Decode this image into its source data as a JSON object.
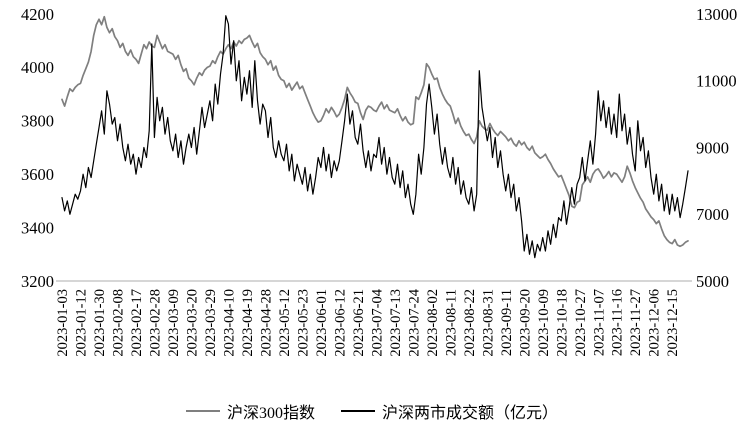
{
  "chart_data": {
    "type": "line",
    "title": "",
    "x_label_every": 7,
    "x_labels": [
      "2023-01-03",
      "2023-01-12",
      "2023-01-30",
      "2023-02-08",
      "2023-02-17",
      "2023-02-28",
      "2023-03-09",
      "2023-03-20",
      "2023-03-29",
      "2023-04-10",
      "2023-04-19",
      "2023-04-28",
      "2023-05-12",
      "2023-05-23",
      "2023-06-01",
      "2023-06-12",
      "2023-06-21",
      "2023-07-04",
      "2023-07-13",
      "2023-07-24",
      "2023-08-02",
      "2023-08-11",
      "2023-08-22",
      "2023-08-31",
      "2023-09-11",
      "2023-09-20",
      "2023-10-09",
      "2023-10-18",
      "2023-10-27",
      "2023-11-07",
      "2023-11-16",
      "2023-11-27",
      "2023-12-06",
      "2023-12-15"
    ],
    "left_axis": {
      "min": 3200,
      "max": 4200,
      "ticks": [
        3200,
        3400,
        3600,
        3800,
        4000,
        4200
      ]
    },
    "right_axis": {
      "min": 5000,
      "max": 13000,
      "ticks": [
        5000,
        7000,
        9000,
        11000,
        13000
      ]
    },
    "grid": false,
    "legend_position": "bottom",
    "axis_line_color": "#c8c8c8",
    "series": [
      {
        "name": "沪深300指数",
        "axis": "left",
        "color": "#7f7f7f",
        "stroke_width": 1.7,
        "values": [
          3880,
          3855,
          3890,
          3920,
          3910,
          3925,
          3935,
          3940,
          3970,
          3995,
          4020,
          4060,
          4120,
          4160,
          4180,
          4160,
          4190,
          4150,
          4130,
          4145,
          4115,
          4100,
          4075,
          4090,
          4060,
          4045,
          4065,
          4040,
          4030,
          4015,
          4050,
          4085,
          4070,
          4095,
          4080,
          4075,
          4120,
          4095,
          4070,
          4085,
          4060,
          4055,
          4050,
          4030,
          4045,
          4010,
          3985,
          3995,
          3960,
          3950,
          3935,
          3960,
          3980,
          3970,
          3990,
          4000,
          4005,
          4025,
          4015,
          4040,
          4060,
          4050,
          4070,
          4085,
          4070,
          4095,
          4080,
          4100,
          4090,
          4105,
          4110,
          4120,
          4095,
          4075,
          4090,
          4055,
          4040,
          4030,
          4010,
          4025,
          3990,
          4005,
          3970,
          3955,
          3950,
          3925,
          3940,
          3915,
          3930,
          3945,
          3920,
          3930,
          3905,
          3880,
          3855,
          3830,
          3810,
          3795,
          3800,
          3820,
          3845,
          3830,
          3850,
          3835,
          3815,
          3825,
          3850,
          3880,
          3925,
          3905,
          3890,
          3870,
          3865,
          3830,
          3805,
          3840,
          3855,
          3850,
          3840,
          3835,
          3855,
          3870,
          3845,
          3860,
          3840,
          3835,
          3830,
          3845,
          3820,
          3800,
          3815,
          3795,
          3785,
          3790,
          3890,
          3880,
          3905,
          3935,
          4014,
          4000,
          3975,
          3955,
          3960,
          3925,
          3900,
          3880,
          3865,
          3855,
          3825,
          3790,
          3810,
          3780,
          3760,
          3745,
          3750,
          3730,
          3715,
          3740,
          3800,
          3780,
          3770,
          3765,
          3790,
          3770,
          3755,
          3745,
          3760,
          3750,
          3740,
          3725,
          3735,
          3715,
          3705,
          3725,
          3710,
          3720,
          3700,
          3690,
          3705,
          3680,
          3670,
          3660,
          3665,
          3675,
          3655,
          3640,
          3620,
          3605,
          3590,
          3595,
          3570,
          3545,
          3520,
          3480,
          3475,
          3495,
          3500,
          3560,
          3575,
          3590,
          3570,
          3600,
          3615,
          3620,
          3605,
          3585,
          3595,
          3610,
          3590,
          3605,
          3600,
          3585,
          3570,
          3590,
          3630,
          3605,
          3575,
          3550,
          3530,
          3510,
          3495,
          3470,
          3455,
          3440,
          3430,
          3415,
          3425,
          3395,
          3370,
          3355,
          3345,
          3340,
          3355,
          3335,
          3330,
          3335,
          3345,
          3350
        ]
      },
      {
        "name": "沪深两市成交额（亿元）",
        "axis": "right",
        "color": "#000000",
        "stroke_width": 1.2,
        "values": [
          7500,
          7100,
          7400,
          7000,
          7300,
          7600,
          7450,
          7700,
          8200,
          7800,
          8400,
          8100,
          8600,
          9100,
          9600,
          10100,
          9400,
          10700,
          10300,
          9700,
          9900,
          9200,
          9700,
          9000,
          8600,
          9100,
          8500,
          8800,
          8200,
          8700,
          8400,
          9000,
          8700,
          9500,
          12100,
          9300,
          10500,
          9800,
          10200,
          9400,
          9900,
          9200,
          8900,
          9400,
          8700,
          9200,
          8500,
          9000,
          9400,
          9000,
          9600,
          8800,
          9500,
          10200,
          9600,
          10000,
          10400,
          9800,
          10900,
          10300,
          11200,
          11800,
          12950,
          12700,
          11500,
          12200,
          11000,
          11600,
          10400,
          11100,
          10600,
          11300,
          10200,
          11600,
          10400,
          9700,
          10300,
          10100,
          9300,
          9900,
          9000,
          8700,
          9200,
          8800,
          8600,
          9100,
          8300,
          8800,
          8000,
          8500,
          8200,
          7900,
          8400,
          7700,
          8200,
          7600,
          8100,
          8700,
          8400,
          9000,
          8300,
          8800,
          8100,
          8600,
          8300,
          8600,
          9200,
          9800,
          10600,
          9700,
          10100,
          9300,
          9100,
          9700,
          8900,
          8400,
          8900,
          8300,
          8800,
          8700,
          9300,
          8500,
          9000,
          8200,
          8700,
          8100,
          7900,
          8500,
          7800,
          8300,
          7500,
          7900,
          7300,
          7000,
          7600,
          8800,
          8200,
          9000,
          10300,
          10900,
          10200,
          9400,
          10000,
          9100,
          8500,
          9000,
          8400,
          8100,
          8700,
          7900,
          8400,
          7600,
          8000,
          7500,
          7300,
          7800,
          7100,
          7600,
          11300,
          10200,
          9700,
          9200,
          9600,
          8700,
          9300,
          8400,
          8900,
          8200,
          7700,
          8200,
          7500,
          7900,
          7100,
          7500,
          6800,
          5900,
          6400,
          5800,
          6200,
          5700,
          6100,
          5900,
          6300,
          5900,
          6500,
          6100,
          6700,
          6300,
          6900,
          6800,
          7400,
          6700,
          7200,
          7800,
          7300,
          7900,
          8100,
          8700,
          8000,
          8600,
          9200,
          8500,
          9400,
          10700,
          9800,
          10400,
          9600,
          10200,
          9400,
          10000,
          9300,
          10600,
          9500,
          10000,
          9100,
          9600,
          8800,
          8300,
          9800,
          8900,
          9300,
          8400,
          8900,
          8100,
          7600,
          8200,
          7400,
          7900,
          7100,
          7600,
          7000,
          7600,
          7100,
          7500,
          6900,
          7300,
          7800,
          8300
        ]
      }
    ]
  },
  "legend": {
    "items": [
      {
        "label": "沪深300指数",
        "color": "#7f7f7f"
      },
      {
        "label": "沪深两市成交额（亿元）",
        "color": "#000000"
      }
    ]
  }
}
